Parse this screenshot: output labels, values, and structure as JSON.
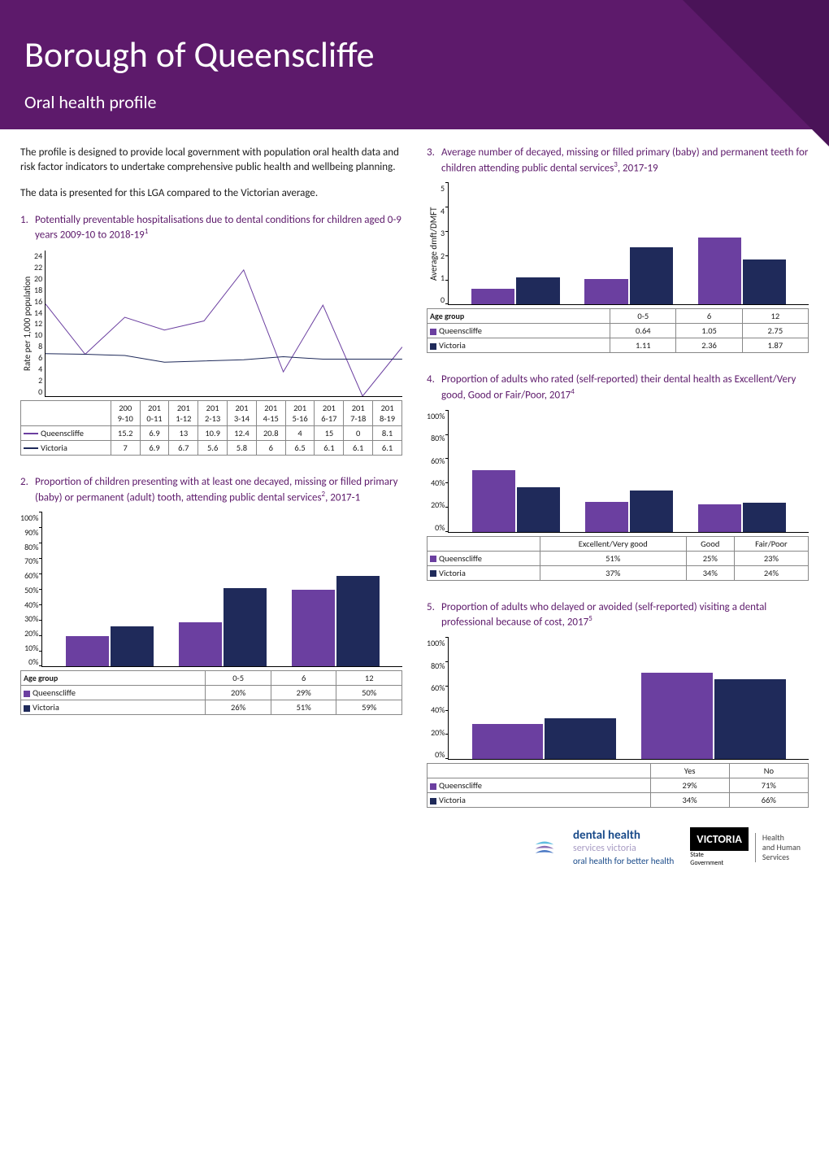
{
  "colors": {
    "purple_header": "#5d1a6b",
    "purple_header_dark": "#4a1358",
    "series_q": "#6b3fa0",
    "series_v": "#1f2a5a",
    "text": "#1a1a1a"
  },
  "header": {
    "title": "Borough of Queenscliffe",
    "subtitle": "Oral health profile"
  },
  "intro1": "The profile is designed to provide local government with population oral health data and risk factor indicators to undertake comprehensive public health and wellbeing planning.",
  "intro2": "The data is presented for this LGA compared to the Victorian average.",
  "sect1": {
    "num": "1.",
    "title": "Potentially preventable hospitalisations due to dental conditions for children aged 0-9 years 2009-10 to 2018-19",
    "sup": "1",
    "ylabel": "Rate per 1,000 population",
    "ymax": 24,
    "ytick_step": 2,
    "x_labels": [
      "2009-10",
      "2010-11",
      "2011-12",
      "2012-13",
      "2013-14",
      "2014-15",
      "2015-16",
      "2016-17",
      "2017-18",
      "2018-19"
    ],
    "x_short": [
      "200 9-10",
      "201 0-11",
      "201 1-12",
      "201 2-13",
      "201 3-14",
      "201 4-15",
      "201 5-16",
      "201 6-17",
      "201 7-18",
      "201 8-19"
    ],
    "series": {
      "q_name": "Queenscliffe",
      "v_name": "Victoria",
      "q": [
        15.2,
        6.9,
        13.0,
        10.9,
        12.4,
        20.8,
        4.0,
        15.0,
        0.0,
        8.1
      ],
      "v": [
        7.0,
        6.9,
        6.7,
        5.6,
        5.8,
        6.0,
        6.5,
        6.1,
        6.1,
        6.1
      ]
    }
  },
  "sect2": {
    "num": "2.",
    "title": "Proportion of children presenting with at least one decayed, missing or filled primary (baby) or permanent (adult) tooth, attending public dental services",
    "sup": "2",
    "title_suffix": ", 2017-1",
    "ymax": 100,
    "ytick_step": 10,
    "ysuffix": "%",
    "age_label": "Age group",
    "categories": [
      "0-5",
      "6",
      "12"
    ],
    "q_name": "Queenscliffe",
    "v_name": "Victoria",
    "q": [
      "20%",
      "29%",
      "50%"
    ],
    "q_val": [
      20,
      29,
      50
    ],
    "v": [
      "26%",
      "51%",
      "59%"
    ],
    "v_val": [
      26,
      51,
      59
    ]
  },
  "sect3": {
    "num": "3.",
    "title": "Average number of decayed, missing or filled primary (baby) and permanent teeth for children attending public dental services",
    "sup": "3",
    "title_suffix": ", 2017-19",
    "ylabel": "Average dmft/DMFT",
    "ymax": 5,
    "ytick_step": 1,
    "age_label": "Age group",
    "categories": [
      "0-5",
      "6",
      "12"
    ],
    "q_name": "Queenscliffe",
    "v_name": "Victoria",
    "q": [
      "0.64",
      "1.05",
      "2.75"
    ],
    "q_val": [
      0.64,
      1.05,
      2.75
    ],
    "v": [
      "1.11",
      "2.36",
      "1.87"
    ],
    "v_val": [
      1.11,
      2.36,
      1.87
    ]
  },
  "sect4": {
    "num": "4.",
    "title": "Proportion of adults who rated (self-reported) their dental health as Excellent/Very good, Good or Fair/Poor, 2017",
    "sup": "4",
    "ymax": 100,
    "ytick_step": 20,
    "ysuffix": "%",
    "categories": [
      "Excellent/Very good",
      "Good",
      "Fair/Poor"
    ],
    "q_name": "Queenscliffe",
    "v_name": "Victoria",
    "q": [
      "51%",
      "25%",
      "23%"
    ],
    "q_val": [
      51,
      25,
      23
    ],
    "v": [
      "37%",
      "34%",
      "24%"
    ],
    "v_val": [
      37,
      34,
      24
    ]
  },
  "sect5": {
    "num": "5.",
    "title": "Proportion of adults who delayed or avoided (self-reported) visiting a dental professional because of cost, 2017",
    "sup": "5",
    "ymax": 100,
    "ytick_step": 20,
    "ysuffix": "%",
    "categories": [
      "Yes",
      "No"
    ],
    "q_name": "Queenscliffe",
    "v_name": "Victoria",
    "q": [
      "29%",
      "71%"
    ],
    "q_val": [
      29,
      71
    ],
    "v": [
      "34%",
      "66%"
    ],
    "v_val": [
      34,
      66
    ]
  },
  "footer": {
    "dhsv_l1": "dental health",
    "dhsv_l2": "services victoria",
    "dhsv_l3": "oral health for better health",
    "vic_logo": "VICTORIA",
    "vic_sub1": "State",
    "vic_sub2": "Government",
    "dept_l1": "Health",
    "dept_l2": "and Human",
    "dept_l3": "Services"
  }
}
